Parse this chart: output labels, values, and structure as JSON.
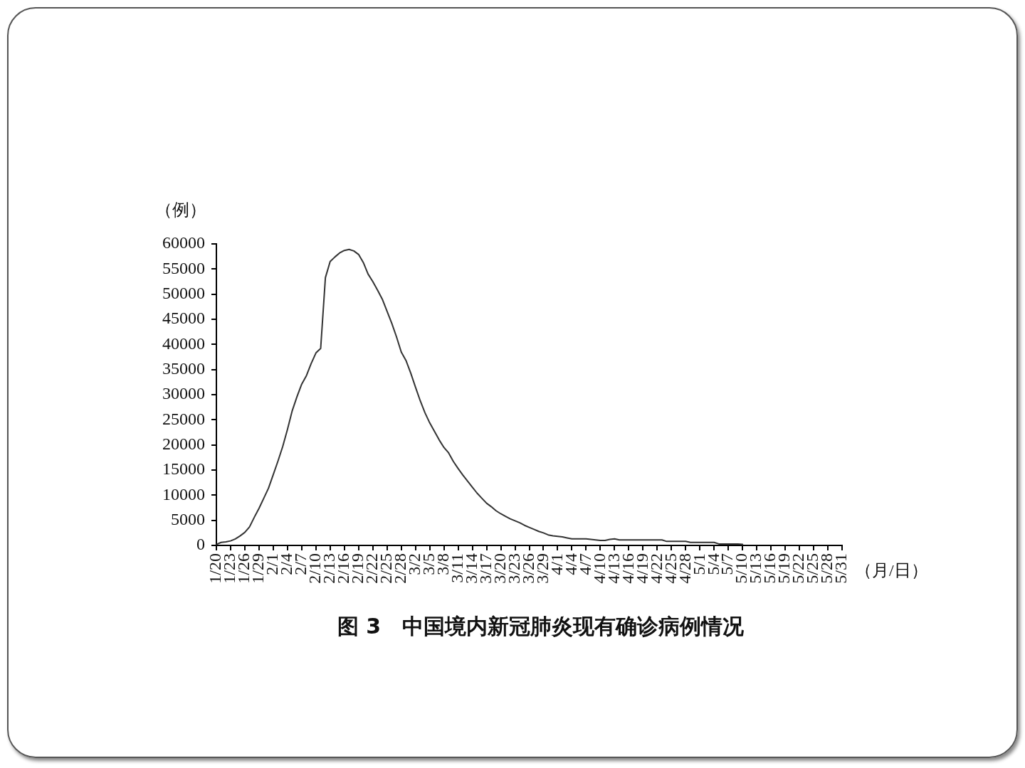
{
  "chart_data": {
    "type": "line",
    "title": "图 3　中国境内新冠肺炎现有确诊病例情况",
    "xlabel": "（月/日）",
    "ylabel": "（例）",
    "color": "#333333",
    "marker": "none",
    "x": [
      "--01-20",
      "--01-21",
      "--01-22",
      "--01-23",
      "--01-24",
      "--01-25",
      "--01-26",
      "--01-27",
      "--01-28",
      "--01-29",
      "--01-30",
      "--01-31",
      "--02-01",
      "--02-02",
      "--02-03",
      "--02-04",
      "--02-05",
      "--02-06",
      "--02-07",
      "--02-08",
      "--02-09",
      "--02-10",
      "--02-11",
      "--02-12",
      "--02-13",
      "--02-14",
      "--02-15",
      "--02-16",
      "--02-17",
      "--02-18",
      "--02-19",
      "--02-20",
      "--02-21",
      "--02-22",
      "--02-23",
      "--02-24",
      "--02-25",
      "--02-26",
      "--02-27",
      "--02-28",
      "--02-29",
      "--03-01",
      "--03-02",
      "--03-03",
      "--03-04",
      "--03-05",
      "--03-06",
      "--03-07",
      "--03-08",
      "--03-09",
      "--03-10",
      "--03-11",
      "--03-12",
      "--03-13",
      "--03-14",
      "--03-15",
      "--03-16",
      "--03-17",
      "--03-18",
      "--03-19",
      "--03-20",
      "--03-21",
      "--03-22",
      "--03-23",
      "--03-24",
      "--03-25",
      "--03-26",
      "--03-27",
      "--03-28",
      "--03-29",
      "--03-30",
      "--03-31",
      "--04-01",
      "--04-02",
      "--04-03",
      "--04-04",
      "--04-05",
      "--04-06",
      "--04-07",
      "--04-08",
      "--04-09",
      "--04-10",
      "--04-11",
      "--04-12",
      "--04-13",
      "--04-14",
      "--04-15",
      "--04-16",
      "--04-17",
      "--04-18",
      "--04-19",
      "--04-20",
      "--04-21",
      "--04-22",
      "--04-23",
      "--04-24",
      "--04-25",
      "--04-26",
      "--04-27",
      "--04-28",
      "--04-29",
      "--04-30",
      "--05-01",
      "--05-02",
      "--05-03",
      "--05-04",
      "--05-05",
      "--05-06",
      "--05-07",
      "--05-08",
      "--05-09",
      "--05-10"
    ],
    "values": [
      200,
      600,
      700,
      900,
      1300,
      1900,
      2600,
      3700,
      5600,
      7400,
      9400,
      11400,
      14100,
      16800,
      19700,
      23100,
      26800,
      29600,
      32100,
      33800,
      36200,
      38300,
      39200,
      53300,
      56500,
      57400,
      58200,
      58700,
      58900,
      58600,
      57900,
      56300,
      54000,
      52500,
      50800,
      49000,
      46600,
      44200,
      41500,
      38500,
      36800,
      34300,
      31500,
      28800,
      26400,
      24400,
      22700,
      21000,
      19500,
      18400,
      16700,
      15300,
      14000,
      12800,
      11600,
      10400,
      9400,
      8400,
      7700,
      6900,
      6300,
      5800,
      5300,
      4900,
      4500,
      4000,
      3600,
      3200,
      2800,
      2500,
      2100,
      1900,
      1800,
      1700,
      1500,
      1300,
      1300,
      1300,
      1300,
      1200,
      1100,
      1000,
      1000,
      1200,
      1300,
      1100,
      1100,
      1100,
      1100,
      1100,
      1100,
      1100,
      1100,
      1100,
      1100,
      800,
      800,
      800,
      800,
      800,
      600,
      600,
      600,
      600,
      600,
      600,
      300,
      300,
      300,
      300,
      300,
      200
    ],
    "xlim": [
      "--01-20",
      "--05-31"
    ],
    "xticks": [
      {
        "value": "--01-20",
        "label": "1/20"
      },
      {
        "value": "--01-23",
        "label": "1/23"
      },
      {
        "value": "--01-26",
        "label": "1/26"
      },
      {
        "value": "--01-29",
        "label": "1/29"
      },
      {
        "value": "--02-01",
        "label": "2/1"
      },
      {
        "value": "--02-04",
        "label": "2/4"
      },
      {
        "value": "--02-07",
        "label": "2/7"
      },
      {
        "value": "--02-10",
        "label": "2/10"
      },
      {
        "value": "--02-13",
        "label": "2/13"
      },
      {
        "value": "--02-16",
        "label": "2/16"
      },
      {
        "value": "--02-19",
        "label": "2/19"
      },
      {
        "value": "--02-22",
        "label": "2/22"
      },
      {
        "value": "--02-25",
        "label": "2/25"
      },
      {
        "value": "--02-28",
        "label": "2/28"
      },
      {
        "value": "--03-02",
        "label": "3/2"
      },
      {
        "value": "--03-05",
        "label": "3/5"
      },
      {
        "value": "--03-08",
        "label": "3/8"
      },
      {
        "value": "--03-11",
        "label": "3/11"
      },
      {
        "value": "--03-14",
        "label": "3/14"
      },
      {
        "value": "--03-17",
        "label": "3/17"
      },
      {
        "value": "--03-20",
        "label": "3/20"
      },
      {
        "value": "--03-23",
        "label": "3/23"
      },
      {
        "value": "--03-26",
        "label": "3/26"
      },
      {
        "value": "--03-29",
        "label": "3/29"
      },
      {
        "value": "--04-01",
        "label": "4/1"
      },
      {
        "value": "--04-04",
        "label": "4/4"
      },
      {
        "value": "--04-07",
        "label": "4/7"
      },
      {
        "value": "--04-10",
        "label": "4/10"
      },
      {
        "value": "--04-13",
        "label": "4/13"
      },
      {
        "value": "--04-16",
        "label": "4/16"
      },
      {
        "value": "--04-19",
        "label": "4/19"
      },
      {
        "value": "--04-22",
        "label": "4/22"
      },
      {
        "value": "--04-25",
        "label": "4/25"
      },
      {
        "value": "--04-28",
        "label": "4/28"
      },
      {
        "value": "--05-01",
        "label": "5/1"
      },
      {
        "value": "--05-04",
        "label": "5/4"
      },
      {
        "value": "--05-07",
        "label": "5/7"
      },
      {
        "value": "--05-10",
        "label": "5/10"
      },
      {
        "value": "--05-13",
        "label": "5/13"
      },
      {
        "value": "--05-16",
        "label": "5/16"
      },
      {
        "value": "--05-19",
        "label": "5/19"
      },
      {
        "value": "--05-22",
        "label": "5/22"
      },
      {
        "value": "--05-25",
        "label": "5/25"
      },
      {
        "value": "--05-28",
        "label": "5/28"
      },
      {
        "value": "--05-31",
        "label": "5/31"
      }
    ],
    "ylim": [
      0,
      60000
    ],
    "yticks": [
      0,
      5000,
      10000,
      15000,
      20000,
      25000,
      30000,
      35000,
      40000,
      45000,
      50000,
      55000,
      60000
    ]
  }
}
